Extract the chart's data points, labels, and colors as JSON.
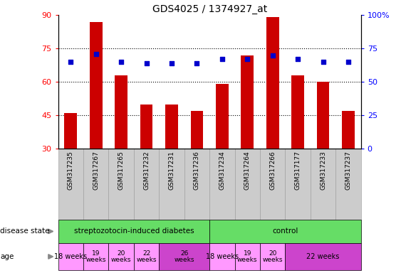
{
  "title": "GDS4025 / 1374927_at",
  "samples": [
    "GSM317235",
    "GSM317267",
    "GSM317265",
    "GSM317232",
    "GSM317231",
    "GSM317236",
    "GSM317234",
    "GSM317264",
    "GSM317266",
    "GSM317177",
    "GSM317233",
    "GSM317237"
  ],
  "counts": [
    46,
    87,
    63,
    50,
    50,
    47,
    59,
    72,
    89,
    63,
    60,
    47
  ],
  "percentiles": [
    65,
    71,
    65,
    64,
    64,
    64,
    67,
    67,
    70,
    67,
    65,
    65
  ],
  "ylim_left": [
    30,
    90
  ],
  "ylim_right": [
    0,
    100
  ],
  "yticks_left": [
    30,
    45,
    60,
    75,
    90
  ],
  "yticks_right": [
    0,
    25,
    50,
    75,
    100
  ],
  "bar_color": "#cc0000",
  "dot_color": "#0000cc",
  "background_color": "#ffffff",
  "dotted_yticks": [
    45,
    60,
    75
  ],
  "legend_count_color": "#cc0000",
  "legend_pct_color": "#0000cc",
  "green_color": "#66dd66",
  "pink_light": "#ff99ff",
  "pink_dark": "#cc44cc",
  "gray_col": "#cccccc",
  "age_groups": [
    {
      "label": "18 weeks",
      "cols": [
        0,
        0
      ],
      "dark": false
    },
    {
      "label": "19\nweeks",
      "cols": [
        1,
        1
      ],
      "dark": false
    },
    {
      "label": "20\nweeks",
      "cols": [
        2,
        2
      ],
      "dark": false
    },
    {
      "label": "22\nweeks",
      "cols": [
        3,
        3
      ],
      "dark": false
    },
    {
      "label": "26\nweeks",
      "cols": [
        4,
        5
      ],
      "dark": true
    },
    {
      "label": "18 weeks",
      "cols": [
        6,
        6
      ],
      "dark": false
    },
    {
      "label": "19\nweeks",
      "cols": [
        7,
        7
      ],
      "dark": false
    },
    {
      "label": "20\nweeks",
      "cols": [
        8,
        8
      ],
      "dark": false
    },
    {
      "label": "22 weeks",
      "cols": [
        9,
        11
      ],
      "dark": true
    }
  ]
}
